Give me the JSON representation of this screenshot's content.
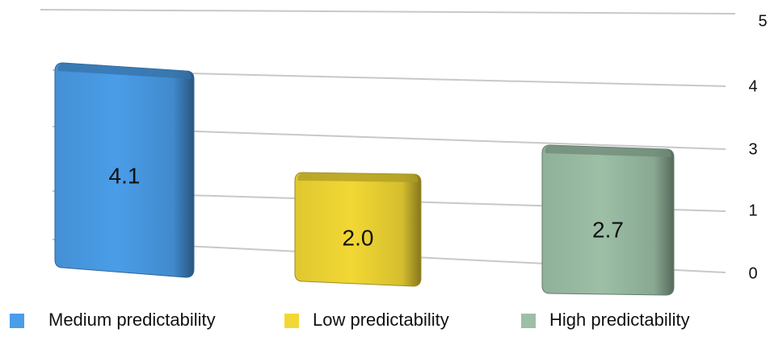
{
  "chart_data": {
    "type": "bar",
    "categories": [
      "Medium predictability",
      "Low predictability",
      "High predictability"
    ],
    "values": [
      4.1,
      2.0,
      2.7
    ],
    "data_labels": [
      "4.1",
      "2.0",
      "2.7"
    ],
    "colors": [
      "#4a9de8",
      "#f2d834",
      "#9cbfa6"
    ],
    "yticks": [
      "0",
      "1",
      "3",
      "4",
      "5"
    ],
    "ylim": [
      0,
      5
    ],
    "title": "",
    "xlabel": "",
    "ylabel": "",
    "legend": {
      "position": "bottom",
      "entries": [
        "Medium predictability",
        "Low predictability",
        "High predictability"
      ]
    },
    "grid": true,
    "style": "3d"
  }
}
